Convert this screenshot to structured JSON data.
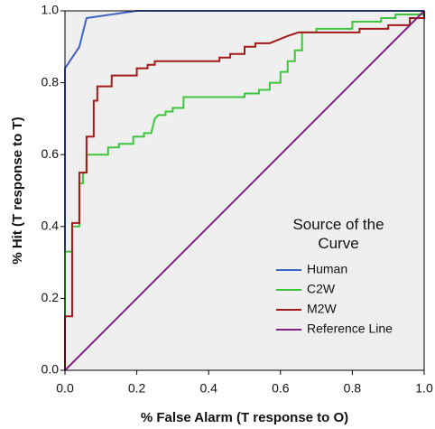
{
  "chart_data": {
    "type": "line",
    "x_label": "% False Alarm (T response to O)",
    "y_label": "% Hit (T response to T)",
    "legend_title": "Source of the Curve",
    "xlim": [
      0,
      1
    ],
    "ylim": [
      0,
      1
    ],
    "xticks": [
      {
        "value": 0,
        "label": "0.0"
      },
      0.2,
      0.4,
      0.6,
      0.8,
      {
        "value": 1,
        "label": "1.0"
      }
    ],
    "yticks": [
      {
        "value": 0,
        "label": "0.0"
      },
      0.2,
      0.4,
      0.6,
      0.8,
      {
        "value": 1,
        "label": "1.0"
      }
    ],
    "series": [
      {
        "name": "Human",
        "color": "#3f63c4",
        "x": [
          0,
          0,
          0.04,
          0.06,
          0.2,
          1
        ],
        "values": [
          0,
          0.84,
          0.9,
          0.98,
          1,
          1
        ]
      },
      {
        "name": "C2W",
        "color": "#3dc63d",
        "x": [
          0,
          0,
          0.02,
          0.02,
          0.04,
          0.04,
          0.05,
          0.05,
          0.06,
          0.06,
          0.12,
          0.12,
          0.15,
          0.15,
          0.19,
          0.19,
          0.22,
          0.22,
          0.24,
          0.25,
          0.26,
          0.28,
          0.28,
          0.3,
          0.3,
          0.33,
          0.33,
          0.5,
          0.5,
          0.54,
          0.54,
          0.57,
          0.57,
          0.6,
          0.6,
          0.62,
          0.62,
          0.64,
          0.64,
          0.66,
          0.66,
          0.7,
          0.7,
          0.8,
          0.8,
          0.88,
          0.88,
          0.92,
          0.92,
          1,
          1
        ],
        "values": [
          0,
          0.33,
          0.33,
          0.4,
          0.4,
          0.52,
          0.52,
          0.55,
          0.55,
          0.6,
          0.6,
          0.62,
          0.62,
          0.63,
          0.63,
          0.65,
          0.65,
          0.66,
          0.66,
          0.7,
          0.71,
          0.71,
          0.72,
          0.72,
          0.73,
          0.73,
          0.76,
          0.76,
          0.77,
          0.77,
          0.78,
          0.78,
          0.8,
          0.8,
          0.83,
          0.83,
          0.86,
          0.86,
          0.89,
          0.89,
          0.94,
          0.94,
          0.95,
          0.95,
          0.97,
          0.97,
          0.98,
          0.98,
          0.99,
          0.99,
          1
        ]
      },
      {
        "name": "M2W",
        "color": "#a31a1a",
        "x": [
          0,
          0,
          0.02,
          0.02,
          0.04,
          0.04,
          0.06,
          0.06,
          0.08,
          0.08,
          0.09,
          0.09,
          0.13,
          0.13,
          0.2,
          0.2,
          0.23,
          0.23,
          0.25,
          0.25,
          0.43,
          0.43,
          0.46,
          0.46,
          0.5,
          0.5,
          0.53,
          0.53,
          0.57,
          0.62,
          0.65,
          0.82,
          0.82,
          0.9,
          0.9,
          0.96,
          0.96,
          1,
          1
        ],
        "values": [
          0,
          0.15,
          0.15,
          0.41,
          0.41,
          0.55,
          0.55,
          0.65,
          0.65,
          0.75,
          0.75,
          0.79,
          0.79,
          0.82,
          0.82,
          0.84,
          0.84,
          0.85,
          0.85,
          0.86,
          0.86,
          0.87,
          0.87,
          0.88,
          0.88,
          0.9,
          0.9,
          0.91,
          0.91,
          0.93,
          0.94,
          0.94,
          0.95,
          0.95,
          0.96,
          0.96,
          0.98,
          0.98,
          1
        ]
      },
      {
        "name": "Reference Line",
        "color": "#7e2286",
        "x": [
          0,
          1
        ],
        "values": [
          0,
          1
        ]
      }
    ]
  }
}
